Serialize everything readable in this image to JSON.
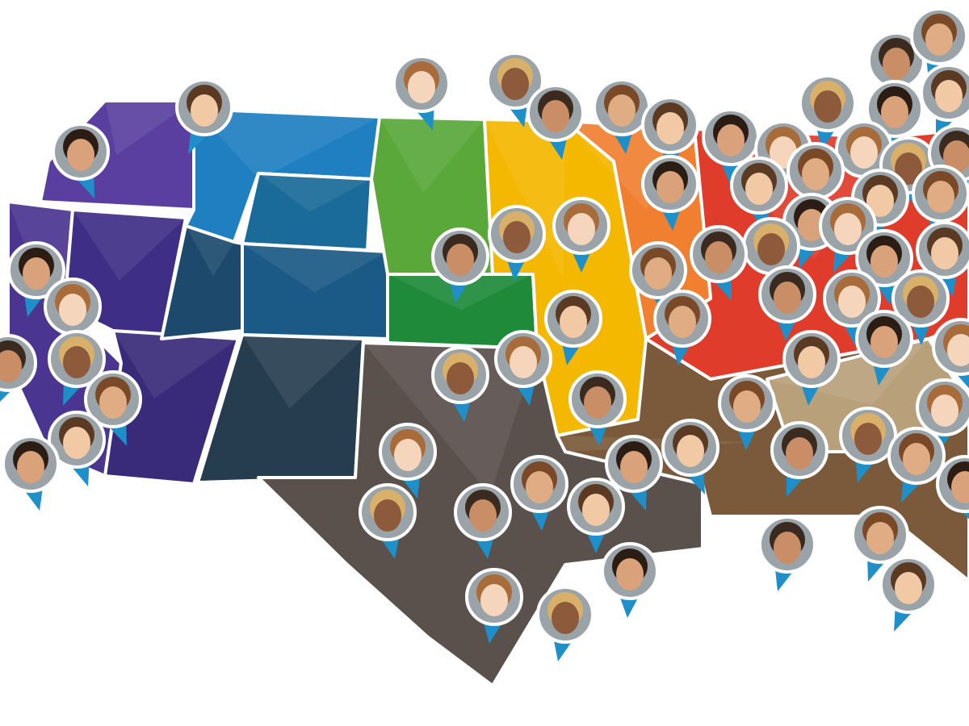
{
  "map": {
    "pin_color": "#1e8fc8",
    "pin_border_color": "#ffffff",
    "region_colors": {
      "pacific_northwest": "#5b3fa0",
      "california": "#4a3590",
      "nevada": "#3e2e86",
      "arizona": "#3a2a7a",
      "northern_rockies": "#1f7fc0",
      "wyoming": "#1a6a9a",
      "utah": "#1d4a6c",
      "colorado": "#1b5a86",
      "new_mexico": "#263d50",
      "dakotas": "#5aa83a",
      "plains": "#1e8a3a",
      "texas_oklahoma": "#5a504c",
      "upper_midwest": "#f5b800",
      "great_lakes": "#f08030",
      "northeast": "#e03c2c",
      "southeast": "#7a5a3a",
      "mid_atlantic": "#b8a07a"
    },
    "pin_icon": "child-photo-pin-icon"
  }
}
